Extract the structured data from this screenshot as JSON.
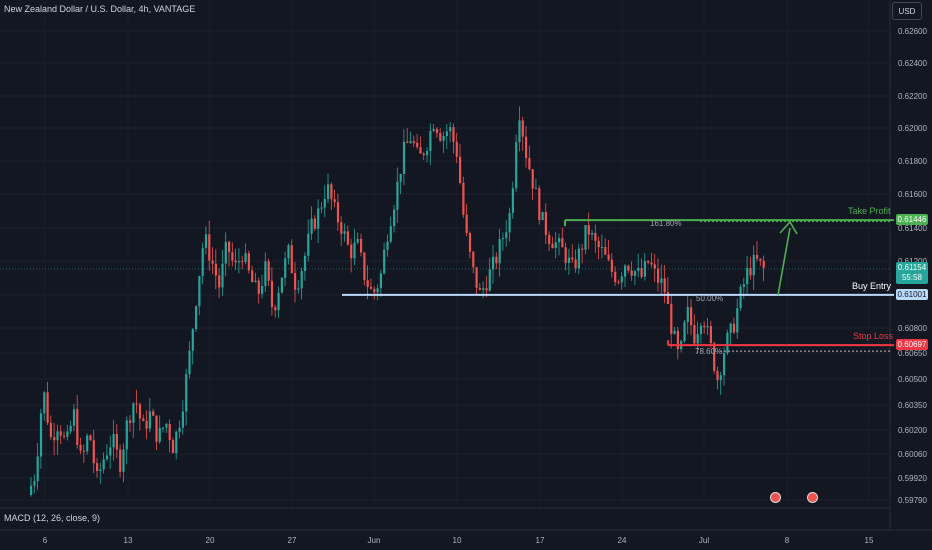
{
  "header": {
    "symbol_title": "New Zealand Dollar / U.S. Dollar, 4h, VANTAGE",
    "currency_button": "USD"
  },
  "indicator": {
    "label": "MACD (12, 26, close, 9)"
  },
  "colors": {
    "background": "#131722",
    "up": "#26a69a",
    "down": "#ef5350",
    "take_profit": "#4caf50",
    "buy_entry": "#bbd9fb",
    "stop_loss": "#f23645",
    "arrow": "#4caf50"
  },
  "annotations": {
    "take_profit_label": "Take Profit",
    "buy_entry_label": "Buy Entry",
    "stop_loss_label": "Stop Loss",
    "fib_1618": "161.80%",
    "fib_50": "50.00%",
    "fib_786": "78.60%"
  },
  "price_badges": {
    "take_profit": "0.61446",
    "current": "0.61154",
    "countdown": "55:58",
    "buy_entry": "0.61001",
    "stop_loss": "0.60697"
  },
  "chart_data": {
    "type": "candlestick",
    "title": "New Zealand Dollar / U.S. Dollar, 4h, VANTAGE",
    "y_axis": {
      "ticks": [
        0.626,
        0.624,
        0.622,
        0.62,
        0.618,
        0.616,
        0.614,
        0.612,
        0.61,
        0.608,
        0.6065,
        0.605,
        0.6035,
        0.602,
        0.6006,
        0.5992,
        0.5979
      ],
      "tick_labels": [
        "0.62600",
        "0.62400",
        "0.62200",
        "0.62000",
        "0.61800",
        "0.61600",
        "0.61400",
        "0.61200",
        "0.61000",
        "0.60800",
        "0.60650",
        "0.60500",
        "0.60350",
        "0.60200",
        "0.60060",
        "0.59920",
        "0.59790"
      ],
      "side": "right"
    },
    "x_axis": {
      "tick_labels": [
        "6",
        "13",
        "20",
        "27",
        "Jun",
        "10",
        "17",
        "24",
        "Jul",
        "8",
        "15"
      ]
    },
    "levels": {
      "take_profit": 0.61446,
      "buy_entry": 0.61001,
      "stop_loss": 0.60697,
      "current_price": 0.61154
    },
    "price_path": [
      [
        0,
        0.5982
      ],
      [
        1,
        0.5995
      ],
      [
        2,
        0.6045
      ],
      [
        3,
        0.6015
      ],
      [
        4,
        0.6025
      ],
      [
        5,
        0.601
      ],
      [
        6,
        0.603
      ],
      [
        7,
        0.6
      ],
      [
        8,
        0.602
      ],
      [
        9,
        0.599
      ],
      [
        10,
        0.6005
      ],
      [
        11,
        0.6015
      ],
      [
        12,
        0.6
      ],
      [
        13,
        0.6025
      ],
      [
        14,
        0.604
      ],
      [
        15,
        0.602
      ],
      [
        16,
        0.603
      ],
      [
        17,
        0.6015
      ],
      [
        18,
        0.6025
      ],
      [
        19,
        0.601
      ],
      [
        20,
        0.603
      ],
      [
        21,
        0.606
      ],
      [
        22,
        0.61
      ],
      [
        23,
        0.6135
      ],
      [
        24,
        0.612
      ],
      [
        25,
        0.6105
      ],
      [
        26,
        0.613
      ],
      [
        27,
        0.6115
      ],
      [
        28,
        0.6125
      ],
      [
        29,
        0.611
      ],
      [
        30,
        0.61
      ],
      [
        31,
        0.6115
      ],
      [
        32,
        0.609
      ],
      [
        33,
        0.611
      ],
      [
        34,
        0.6125
      ],
      [
        35,
        0.6105
      ],
      [
        36,
        0.612
      ],
      [
        37,
        0.614
      ],
      [
        38,
        0.615
      ],
      [
        39,
        0.6165
      ],
      [
        40,
        0.615
      ],
      [
        41,
        0.614
      ],
      [
        42,
        0.6125
      ],
      [
        43,
        0.613
      ],
      [
        44,
        0.611
      ],
      [
        45,
        0.61
      ],
      [
        46,
        0.611
      ],
      [
        47,
        0.614
      ],
      [
        48,
        0.616
      ],
      [
        49,
        0.6185
      ],
      [
        50,
        0.6195
      ],
      [
        51,
        0.618
      ],
      [
        52,
        0.619
      ],
      [
        53,
        0.6205
      ],
      [
        54,
        0.6195
      ],
      [
        55,
        0.62
      ],
      [
        56,
        0.6185
      ],
      [
        57,
        0.614
      ],
      [
        58,
        0.6115
      ],
      [
        59,
        0.61
      ],
      [
        60,
        0.611
      ],
      [
        61,
        0.612
      ],
      [
        62,
        0.6135
      ],
      [
        63,
        0.615
      ],
      [
        64,
        0.6215
      ],
      [
        65,
        0.6185
      ],
      [
        66,
        0.6165
      ],
      [
        67,
        0.6145
      ],
      [
        68,
        0.6135
      ],
      [
        69,
        0.613
      ],
      [
        70,
        0.6125
      ],
      [
        71,
        0.6115
      ],
      [
        72,
        0.6125
      ],
      [
        73,
        0.614
      ],
      [
        74,
        0.613
      ],
      [
        75,
        0.6125
      ],
      [
        76,
        0.6115
      ],
      [
        77,
        0.611
      ],
      [
        78,
        0.612
      ],
      [
        79,
        0.6115
      ],
      [
        80,
        0.611
      ],
      [
        81,
        0.612
      ],
      [
        82,
        0.611
      ],
      [
        83,
        0.6105
      ],
      [
        84,
        0.608
      ],
      [
        85,
        0.606
      ],
      [
        86,
        0.609
      ],
      [
        87,
        0.6075
      ],
      [
        88,
        0.609
      ],
      [
        89,
        0.607
      ],
      [
        90,
        0.605
      ],
      [
        91,
        0.607
      ],
      [
        92,
        0.608
      ],
      [
        93,
        0.61
      ],
      [
        94,
        0.6115
      ],
      [
        95,
        0.612
      ],
      [
        96,
        0.6115
      ]
    ]
  }
}
